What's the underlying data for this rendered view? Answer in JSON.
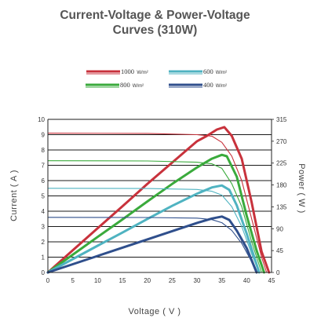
{
  "chart_data": {
    "type": "line",
    "title_lines": [
      "Current-Voltage & Power-Voltage",
      "Curves (310W)"
    ],
    "xlabel": "Voltage ( V )",
    "ylabel_left": "Current ( A )",
    "ylabel_right": "Power ( W )",
    "xlim": [
      0,
      45
    ],
    "ylim_left": [
      0,
      10
    ],
    "ylim_right": [
      0,
      315
    ],
    "x_ticks": [
      "0",
      "5",
      "10",
      "15",
      "20",
      "25",
      "30",
      "35",
      "40",
      "45"
    ],
    "y_left_ticks": [
      "0",
      "1",
      "2",
      "3",
      "4",
      "5",
      "6",
      "7",
      "8",
      "9",
      "10"
    ],
    "y_right_ticks": [
      "0",
      "45",
      "90",
      "135",
      "180",
      "225",
      "270",
      "315"
    ],
    "grid": "horizontal",
    "legend_position": "top-center",
    "series": [
      {
        "irradiance": "1000",
        "unit": "W/m²",
        "color": "#c8323c",
        "iv": [
          [
            0,
            9.1
          ],
          [
            20,
            9.08
          ],
          [
            30,
            9.0
          ],
          [
            33,
            8.9
          ],
          [
            35,
            8.5
          ],
          [
            37,
            7.6
          ],
          [
            39,
            6.0
          ],
          [
            41,
            3.5
          ],
          [
            43,
            1.0
          ],
          [
            44,
            0
          ]
        ],
        "pv": [
          [
            0,
            0
          ],
          [
            5,
            45.5
          ],
          [
            10,
            91
          ],
          [
            15,
            136
          ],
          [
            20,
            182
          ],
          [
            25,
            226
          ],
          [
            30,
            270
          ],
          [
            32,
            281
          ],
          [
            34,
            294
          ],
          [
            35.5,
            299
          ],
          [
            37,
            281
          ],
          [
            39,
            234
          ],
          [
            41,
            144
          ],
          [
            43,
            43
          ],
          [
            44.5,
            0
          ]
        ]
      },
      {
        "irradiance": "800",
        "unit": "W/m²",
        "color": "#3aaa3c",
        "iv": [
          [
            0,
            7.3
          ],
          [
            20,
            7.28
          ],
          [
            30,
            7.2
          ],
          [
            33,
            7.1
          ],
          [
            35,
            6.8
          ],
          [
            37,
            5.8
          ],
          [
            39,
            4.3
          ],
          [
            41,
            2.0
          ],
          [
            43,
            0
          ]
        ],
        "pv": [
          [
            0,
            0
          ],
          [
            5,
            36.5
          ],
          [
            10,
            73
          ],
          [
            15,
            109
          ],
          [
            20,
            146
          ],
          [
            25,
            182
          ],
          [
            30,
            216
          ],
          [
            33,
            234
          ],
          [
            35,
            242
          ],
          [
            36,
            239
          ],
          [
            38,
            197
          ],
          [
            40,
            117
          ],
          [
            42,
            45
          ],
          [
            43.5,
            0
          ]
        ]
      },
      {
        "irradiance": "600",
        "unit": "W/m²",
        "color": "#4fb3c1",
        "iv": [
          [
            0,
            5.5
          ],
          [
            20,
            5.48
          ],
          [
            30,
            5.42
          ],
          [
            33,
            5.3
          ],
          [
            35,
            5.05
          ],
          [
            37,
            4.3
          ],
          [
            39,
            3.0
          ],
          [
            41,
            1.2
          ],
          [
            42.5,
            0
          ]
        ],
        "pv": [
          [
            0,
            0
          ],
          [
            5,
            27.5
          ],
          [
            10,
            55
          ],
          [
            15,
            82
          ],
          [
            20,
            110
          ],
          [
            25,
            137
          ],
          [
            30,
            162
          ],
          [
            33,
            175
          ],
          [
            35,
            179
          ],
          [
            36.5,
            170
          ],
          [
            38,
            138
          ],
          [
            40,
            80
          ],
          [
            42.5,
            0
          ]
        ]
      },
      {
        "irradiance": "400",
        "unit": "W/m²",
        "color": "#2f4f8c",
        "iv": [
          [
            0,
            3.6
          ],
          [
            20,
            3.59
          ],
          [
            30,
            3.55
          ],
          [
            33,
            3.45
          ],
          [
            35,
            3.25
          ],
          [
            37,
            2.75
          ],
          [
            39,
            1.9
          ],
          [
            41,
            0.7
          ],
          [
            42,
            0
          ]
        ],
        "pv": [
          [
            0,
            0
          ],
          [
            5,
            17
          ],
          [
            10,
            34
          ],
          [
            15,
            51
          ],
          [
            20,
            68
          ],
          [
            25,
            85
          ],
          [
            30,
            102
          ],
          [
            33,
            111
          ],
          [
            35,
            115
          ],
          [
            36.5,
            108
          ],
          [
            38,
            86
          ],
          [
            40,
            50
          ],
          [
            42,
            0
          ]
        ]
      }
    ]
  }
}
